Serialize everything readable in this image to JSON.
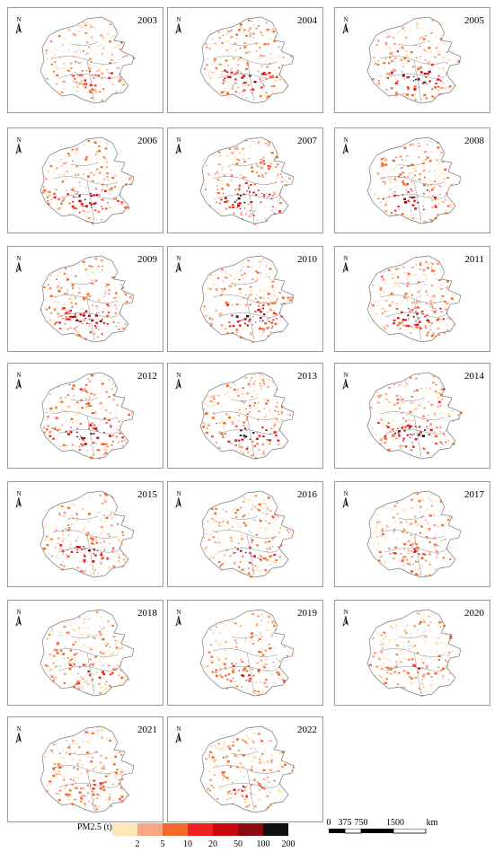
{
  "years": [
    "2003",
    "2004",
    "2005",
    "2006",
    "2007",
    "2008",
    "2009",
    "2010",
    "2011",
    "2012",
    "2013",
    "2014",
    "2015",
    "2016",
    "2017",
    "2018",
    "2019",
    "2020",
    "2021",
    "2022"
  ],
  "north_label": "N",
  "legend": {
    "title": "PM2.5 (t)",
    "colors": [
      "#fde6b8",
      "#f7a784",
      "#f46a2c",
      "#ee2020",
      "#c8080c",
      "#8a0a10",
      "#101010"
    ],
    "ticks": [
      "2",
      "5",
      "10",
      "20",
      "50",
      "100",
      "200"
    ]
  },
  "scale": {
    "labels": [
      "0",
      "375",
      "750",
      "1500"
    ],
    "unit": "km"
  },
  "intensity": {
    "2003": 0.35,
    "2004": 0.55,
    "2005": 0.75,
    "2006": 0.65,
    "2007": 0.85,
    "2008": 0.7,
    "2009": 0.7,
    "2010": 0.75,
    "2011": 0.65,
    "2012": 0.85,
    "2013": 0.8,
    "2014": 0.75,
    "2015": 0.55,
    "2016": 0.45,
    "2017": 0.4,
    "2018": 0.35,
    "2019": 0.35,
    "2020": 0.3,
    "2021": 0.3,
    "2022": 0.35
  }
}
